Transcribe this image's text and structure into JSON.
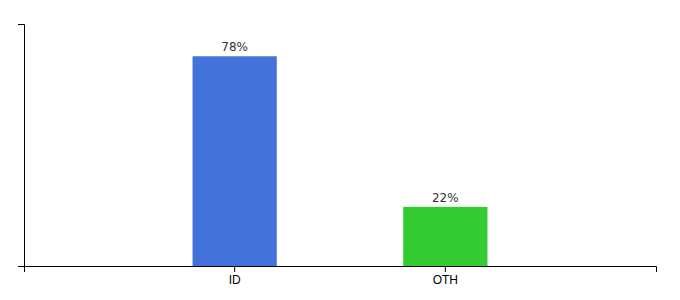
{
  "chart_data": {
    "type": "bar",
    "categories": [
      "ID",
      "OTH"
    ],
    "values": [
      78,
      22
    ],
    "value_labels": [
      "78%",
      "22%"
    ],
    "colors": [
      "#4472db",
      "#33cc33"
    ],
    "ylim": [
      0,
      90
    ],
    "yticks": [],
    "data_labels": true,
    "tick_labels": "x",
    "grid": false
  }
}
